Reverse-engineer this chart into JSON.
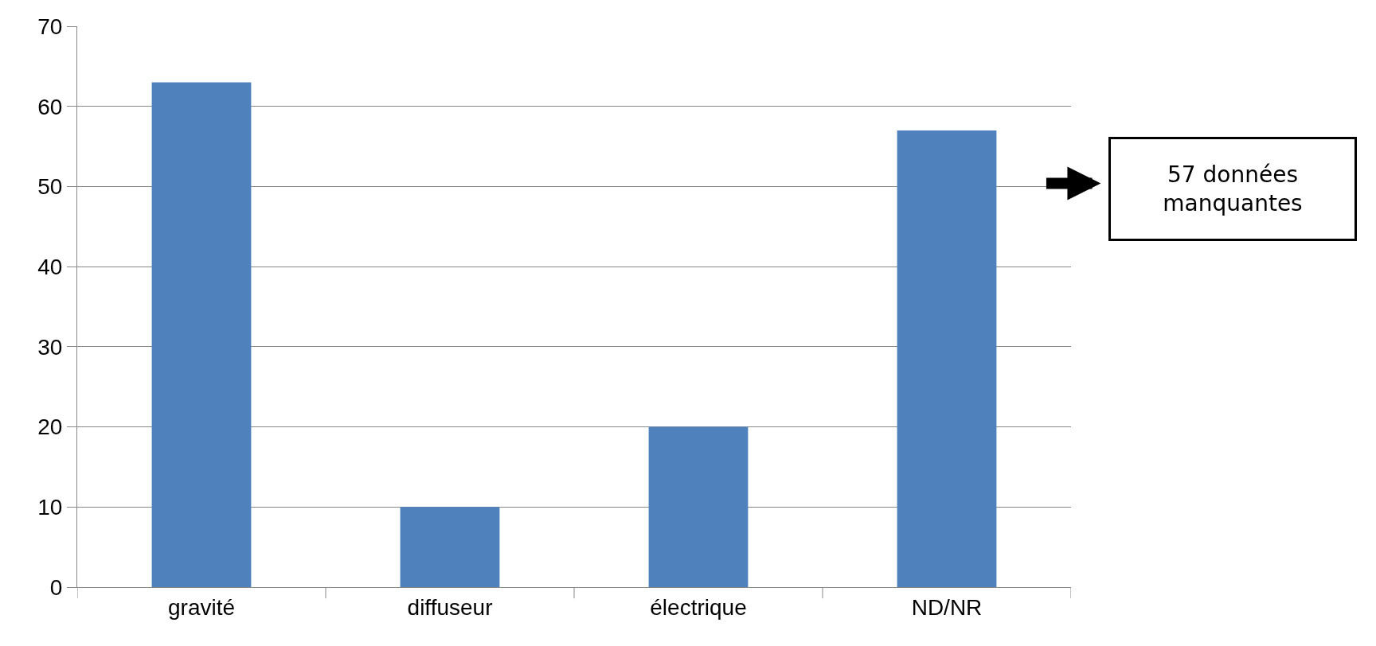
{
  "chart_data": {
    "type": "bar",
    "categories": [
      "gravité",
      "diffuseur",
      "électrique",
      "ND/NR"
    ],
    "values": [
      63,
      10,
      20,
      57
    ],
    "color": "#4f81bd",
    "ylim": [
      0,
      70
    ],
    "yticks": [
      0,
      10,
      20,
      30,
      40,
      50,
      60,
      70
    ],
    "grid": "y",
    "legend": false,
    "annotations": [
      "57 données manquantes"
    ]
  }
}
